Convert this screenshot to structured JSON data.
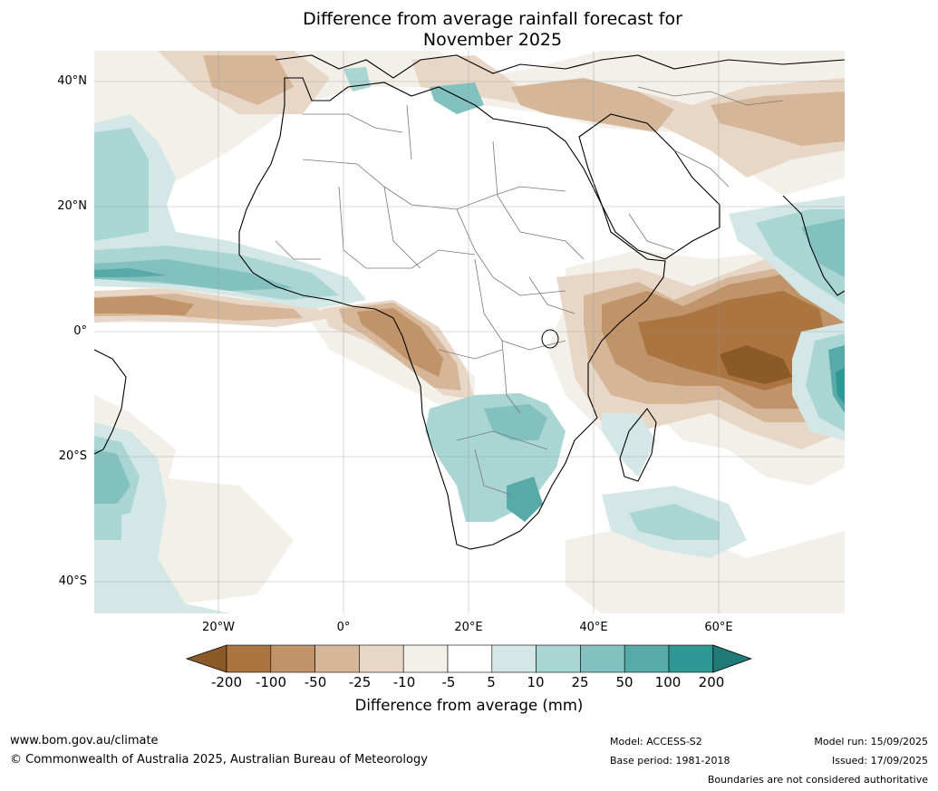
{
  "title_line1": "Difference from average rainfall forecast for",
  "title_line2": "November 2025",
  "lat_labels": [
    "40°N",
    "20°N",
    "0°",
    "20°S",
    "40°S"
  ],
  "lon_labels": [
    "20°W",
    "0°",
    "20°E",
    "40°E",
    "60°E"
  ],
  "colorbar": {
    "ticks": [
      "-200",
      "-100",
      "-50",
      "-25",
      "-10",
      "-5",
      "5",
      "10",
      "25",
      "50",
      "100",
      "200"
    ],
    "colors": [
      "#8b5a28",
      "#ab7440",
      "#c19368",
      "#d6b698",
      "#e8d7c6",
      "#f3efe9",
      "#ffffff",
      "#d3e8e6",
      "#a9d5d2",
      "#82c1bf",
      "#57aaa8",
      "#2e9894",
      "#1f7a78"
    ],
    "label": "Difference from average (mm)"
  },
  "footer": {
    "website": "www.bom.gov.au/climate",
    "copyright": "© Commonwealth of Australia 2025, Australian Bureau of Meteorology",
    "model": "Model: ACCESS-S2",
    "base_period": "Base period: 1981-2018",
    "model_run": "Model run: 15/09/2025",
    "issued": "Issued: 17/09/2025",
    "disclaimer": "Boundaries are not considered authoritative"
  }
}
